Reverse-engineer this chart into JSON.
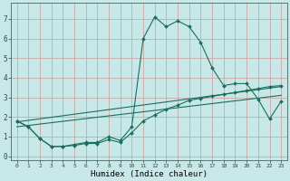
{
  "title": "",
  "xlabel": "Humidex (Indice chaleur)",
  "ylabel": "",
  "background_color": "#c8e8e8",
  "grid_color": "#c8a8a8",
  "line_color": "#1a6e5e",
  "xlim": [
    -0.5,
    23.5
  ],
  "ylim": [
    -0.2,
    7.8
  ],
  "xticks": [
    0,
    1,
    2,
    3,
    4,
    5,
    6,
    7,
    8,
    9,
    10,
    11,
    12,
    13,
    14,
    15,
    16,
    17,
    18,
    19,
    20,
    21,
    22,
    23
  ],
  "yticks": [
    0,
    1,
    2,
    3,
    4,
    5,
    6,
    7
  ],
  "line1_x": [
    0,
    1,
    2,
    3,
    4,
    5,
    6,
    7,
    8,
    9,
    10,
    11,
    12,
    13,
    14,
    15,
    16,
    17,
    18,
    19,
    20,
    21,
    22,
    23
  ],
  "line1_y": [
    1.8,
    1.5,
    0.9,
    0.5,
    0.5,
    0.6,
    0.7,
    0.7,
    1.0,
    0.8,
    1.5,
    6.0,
    7.1,
    6.6,
    6.9,
    6.6,
    5.8,
    4.5,
    3.6,
    3.7,
    3.7,
    2.9,
    1.9,
    2.8
  ],
  "line2_x": [
    0,
    1,
    2,
    3,
    4,
    5,
    6,
    7,
    8,
    9,
    10,
    11,
    12,
    13,
    14,
    15,
    16,
    17,
    18,
    19,
    20,
    21,
    22,
    23
  ],
  "line2_y": [
    1.8,
    1.5,
    0.9,
    0.5,
    0.5,
    0.55,
    0.65,
    0.65,
    0.85,
    0.7,
    1.2,
    1.8,
    2.1,
    2.4,
    2.6,
    2.85,
    2.95,
    3.05,
    3.15,
    3.25,
    3.35,
    3.45,
    3.55,
    3.6
  ],
  "line3_x": [
    0,
    23
  ],
  "line3_y": [
    1.75,
    3.55
  ],
  "line4_x": [
    0,
    23
  ],
  "line4_y": [
    1.5,
    3.1
  ]
}
